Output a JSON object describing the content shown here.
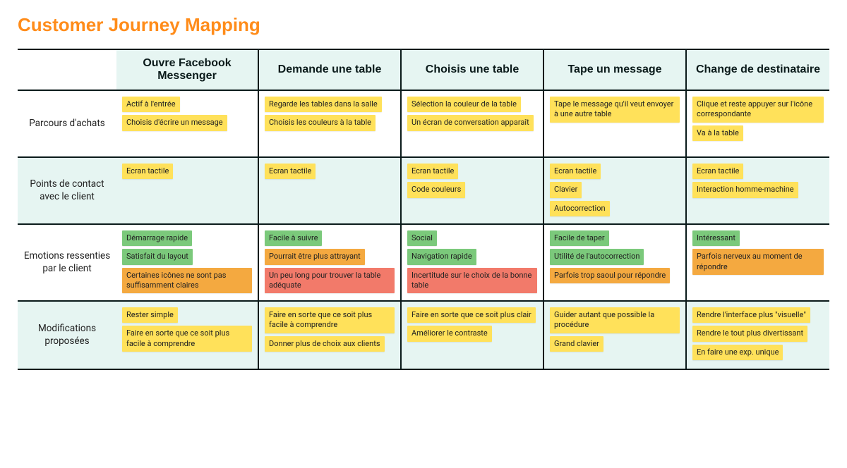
{
  "title": "Customer Journey Mapping",
  "colors": {
    "title": "#ff8c1a",
    "border": "#0a1a1a",
    "cell_alt_bg": "#e6f5f2",
    "cell_bg": "#ffffff",
    "note_yellow": "#ffe15a",
    "note_green": "#7bc97b",
    "note_orange": "#f4a940",
    "note_red": "#f27a6a"
  },
  "columns": [
    "Ouvre Facebook Messenger",
    "Demande une table",
    "Choisis une table",
    "Tape un message",
    "Change de destinataire"
  ],
  "rows": [
    {
      "label": "Parcours d'achats",
      "alt": false
    },
    {
      "label": "Points de contact avec le client",
      "alt": true
    },
    {
      "label": "Emotions ressenties par le client",
      "alt": false
    },
    {
      "label": "Modifications proposées",
      "alt": true
    }
  ],
  "cells": {
    "r0": {
      "c0": [
        {
          "text": "Actif à l'entrée",
          "color": "yellow"
        },
        {
          "text": "Choisis d'écrire un message",
          "color": "yellow"
        }
      ],
      "c1": [
        {
          "text": "Regarde les tables dans la salle",
          "color": "yellow"
        },
        {
          "text": "Choisis les couleurs à la table",
          "color": "yellow"
        }
      ],
      "c2": [
        {
          "text": "Sélection la couleur de la table",
          "color": "yellow"
        },
        {
          "text": "Un écran de conversation apparaît",
          "color": "yellow"
        }
      ],
      "c3": [
        {
          "text": "Tape le message qu'il veut envoyer à une autre table",
          "color": "yellow"
        }
      ],
      "c4": [
        {
          "text": "Clique et reste appuyer sur l'icône correspondante",
          "color": "yellow"
        },
        {
          "text": "Va à la table",
          "color": "yellow"
        }
      ]
    },
    "r1": {
      "c0": [
        {
          "text": "Ecran tactile",
          "color": "yellow"
        }
      ],
      "c1": [
        {
          "text": "Ecran tactile",
          "color": "yellow"
        }
      ],
      "c2": [
        {
          "text": "Ecran tactile",
          "color": "yellow"
        },
        {
          "text": "Code couleurs",
          "color": "yellow"
        }
      ],
      "c3": [
        {
          "text": "Ecran tactile",
          "color": "yellow"
        },
        {
          "text": "Clavier",
          "color": "yellow"
        },
        {
          "text": "Autocorrection",
          "color": "yellow"
        }
      ],
      "c4": [
        {
          "text": "Ecran tactile",
          "color": "yellow"
        },
        {
          "text": "Interaction homme-machine",
          "color": "yellow"
        }
      ]
    },
    "r2": {
      "c0": [
        {
          "text": "Démarrage rapide",
          "color": "green"
        },
        {
          "text": "Satisfait du layout",
          "color": "green"
        },
        {
          "text": "Certaines icônes ne sont pas suffisamment claires",
          "color": "orange"
        }
      ],
      "c1": [
        {
          "text": "Facile à suivre",
          "color": "green"
        },
        {
          "text": "Pourrait être plus attrayant",
          "color": "orange"
        },
        {
          "text": "Un peu long pour trouver la table adéquate",
          "color": "red"
        }
      ],
      "c2": [
        {
          "text": "Social",
          "color": "green"
        },
        {
          "text": "Navigation rapide",
          "color": "green"
        },
        {
          "text": "Incertitude sur le choix de la bonne table",
          "color": "red"
        }
      ],
      "c3": [
        {
          "text": "Facile de taper",
          "color": "green"
        },
        {
          "text": "Utilité de l'autocorrection",
          "color": "green"
        },
        {
          "text": "Parfois trop saoul pour répondre",
          "color": "orange"
        }
      ],
      "c4": [
        {
          "text": "Intéressant",
          "color": "green"
        },
        {
          "text": "Parfois nerveux au moment de répondre",
          "color": "orange"
        }
      ]
    },
    "r3": {
      "c0": [
        {
          "text": "Rester simple",
          "color": "yellow"
        },
        {
          "text": "Faire en sorte que ce soit plus facile à comprendre",
          "color": "yellow"
        }
      ],
      "c1": [
        {
          "text": "Faire en sorte que ce soit plus facile à comprendre",
          "color": "yellow"
        },
        {
          "text": "Donner plus de choix aux clients",
          "color": "yellow"
        }
      ],
      "c2": [
        {
          "text": "Faire en sorte que ce soit plus clair",
          "color": "yellow"
        },
        {
          "text": "Améliorer le contraste",
          "color": "yellow"
        }
      ],
      "c3": [
        {
          "text": "Guider autant que possible la procédure",
          "color": "yellow"
        },
        {
          "text": "Grand clavier",
          "color": "yellow"
        }
      ],
      "c4": [
        {
          "text": "Rendre l'interface plus \"visuelle\"",
          "color": "yellow"
        },
        {
          "text": "Rendre le tout plus divertissant",
          "color": "yellow"
        },
        {
          "text": "En faire une exp. unique",
          "color": "yellow"
        }
      ]
    }
  }
}
